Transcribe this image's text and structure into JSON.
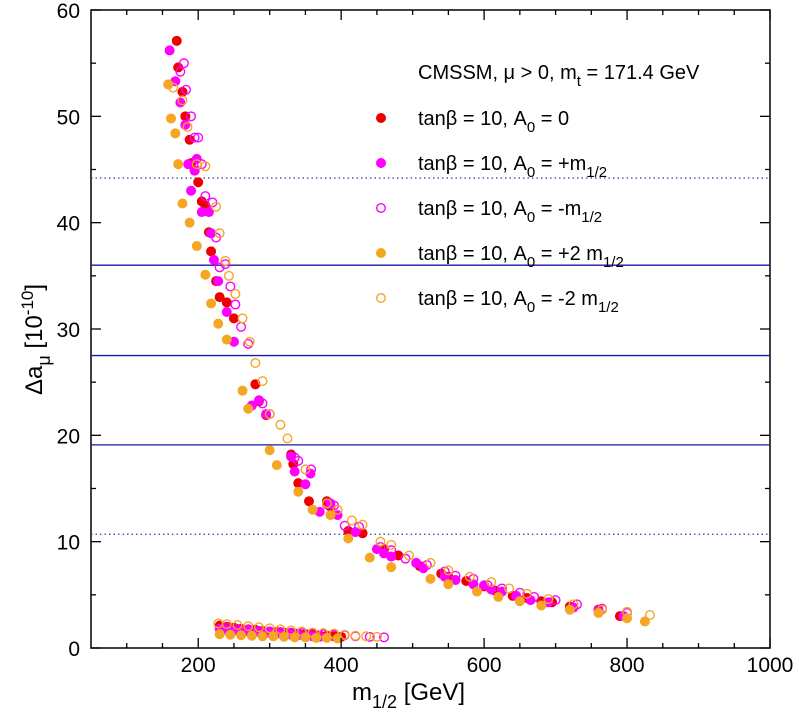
{
  "chart_data": {
    "type": "scatter",
    "title": "CMSSM, μ > 0, m",
    "title_sub": "t",
    "title_tail": " = 171.4 GeV",
    "xlabel": "m",
    "xlabel_sub": "1/2",
    "xlabel_tail": " [GeV]",
    "ylabel": "Δa",
    "ylabel_sub": "μ",
    "ylabel_mid": " [10",
    "ylabel_sup": "-10",
    "ylabel_tail": "]",
    "xlim": [
      50,
      1000
    ],
    "ylim": [
      0,
      60
    ],
    "x_ticks": [
      200,
      400,
      600,
      800,
      1000
    ],
    "y_ticks": [
      0,
      10,
      20,
      30,
      40,
      50,
      60
    ],
    "grid": false,
    "legend_position": "top-right",
    "reference_lines": [
      {
        "y": 44.2,
        "style": "dotted",
        "color": "#3a3a9a"
      },
      {
        "y": 36.0,
        "style": "solid",
        "color": "#1a1aaa"
      },
      {
        "y": 27.5,
        "style": "solid",
        "color": "#1a1aaa"
      },
      {
        "y": 19.1,
        "style": "solid",
        "color": "#1a1aaa"
      },
      {
        "y": 10.7,
        "style": "dotted",
        "color": "#3a3a9a"
      }
    ],
    "series": [
      {
        "name": "tanβ = 10, A",
        "name_sub": "0",
        "name_tail": " = 0",
        "color": "#ee0000",
        "filled": true,
        "points": [
          [
            170,
            57.1
          ],
          [
            172,
            54.6
          ],
          [
            178,
            52.3
          ],
          [
            182,
            50.0
          ],
          [
            188,
            47.8
          ],
          [
            190,
            45.6
          ],
          [
            195,
            44.9
          ],
          [
            200,
            43.8
          ],
          [
            205,
            42.0
          ],
          [
            210,
            41.6
          ],
          [
            215,
            39.1
          ],
          [
            218,
            37.3
          ],
          [
            225,
            34.5
          ],
          [
            230,
            33.0
          ],
          [
            240,
            32.5
          ],
          [
            250,
            31.0
          ],
          [
            280,
            24.8
          ],
          [
            285,
            23.2
          ],
          [
            295,
            21.9
          ],
          [
            330,
            18.2
          ],
          [
            333,
            17.3
          ],
          [
            340,
            15.5
          ],
          [
            355,
            13.8
          ],
          [
            380,
            13.8
          ],
          [
            385,
            13.3
          ],
          [
            410,
            11.0
          ],
          [
            430,
            10.8
          ],
          [
            460,
            9.3
          ],
          [
            480,
            8.7
          ],
          [
            510,
            7.7
          ],
          [
            540,
            7.0
          ],
          [
            550,
            6.7
          ],
          [
            575,
            6.3
          ],
          [
            600,
            5.8
          ],
          [
            615,
            5.4
          ],
          [
            640,
            4.9
          ],
          [
            660,
            4.7
          ],
          [
            680,
            4.4
          ],
          [
            695,
            4.3
          ],
          [
            720,
            3.9
          ],
          [
            760,
            3.6
          ],
          [
            790,
            3.0
          ],
          [
            230,
            2.1
          ],
          [
            240,
            2.0
          ],
          [
            250,
            1.9
          ],
          [
            260,
            1.8
          ],
          [
            270,
            1.75
          ],
          [
            280,
            1.7
          ],
          [
            290,
            1.6
          ],
          [
            300,
            1.55
          ],
          [
            310,
            1.5
          ],
          [
            320,
            1.45
          ],
          [
            330,
            1.4
          ],
          [
            340,
            1.35
          ],
          [
            350,
            1.3
          ],
          [
            360,
            1.25
          ],
          [
            370,
            1.2
          ],
          [
            380,
            1.15
          ],
          [
            390,
            1.1
          ],
          [
            400,
            1.05
          ]
        ]
      },
      {
        "name": "tanβ = 10, A",
        "name_sub": "0",
        "name_tail": " = +m",
        "name_sub2": "1/2",
        "color": "#ff00ff",
        "filled": true,
        "points": [
          [
            160,
            56.2
          ],
          [
            168,
            53.3
          ],
          [
            175,
            51.3
          ],
          [
            182,
            49.2
          ],
          [
            186,
            45.5
          ],
          [
            190,
            43.0
          ],
          [
            195,
            44.9
          ],
          [
            198,
            46.0
          ],
          [
            205,
            41.0
          ],
          [
            215,
            41.0
          ],
          [
            218,
            39.0
          ],
          [
            222,
            36.5
          ],
          [
            228,
            34.5
          ],
          [
            240,
            31.6
          ],
          [
            250,
            28.8
          ],
          [
            275,
            22.8
          ],
          [
            285,
            23.3
          ],
          [
            295,
            22.0
          ],
          [
            330,
            18.0
          ],
          [
            335,
            16.6
          ],
          [
            350,
            15.4
          ],
          [
            357,
            16.4
          ],
          [
            370,
            12.8
          ],
          [
            385,
            13.6
          ],
          [
            395,
            12.5
          ],
          [
            420,
            10.9
          ],
          [
            450,
            9.3
          ],
          [
            460,
            8.9
          ],
          [
            470,
            8.6
          ],
          [
            505,
            8.0
          ],
          [
            515,
            7.5
          ],
          [
            545,
            6.7
          ],
          [
            560,
            6.4
          ],
          [
            585,
            6.0
          ],
          [
            600,
            5.9
          ],
          [
            610,
            5.5
          ],
          [
            625,
            5.3
          ],
          [
            645,
            4.9
          ],
          [
            665,
            4.5
          ],
          [
            690,
            4.3
          ],
          [
            725,
            3.8
          ],
          [
            760,
            3.5
          ],
          [
            795,
            3.0
          ],
          [
            230,
            1.8
          ],
          [
            240,
            1.7
          ],
          [
            250,
            1.65
          ],
          [
            260,
            1.6
          ],
          [
            270,
            1.55
          ],
          [
            280,
            1.5
          ],
          [
            290,
            1.45
          ],
          [
            300,
            1.4
          ],
          [
            310,
            1.35
          ],
          [
            320,
            1.3
          ],
          [
            330,
            1.25
          ],
          [
            340,
            1.2
          ],
          [
            350,
            1.15
          ],
          [
            360,
            1.1
          ],
          [
            370,
            1.05
          ],
          [
            380,
            1.0
          ]
        ]
      },
      {
        "name": "tanβ = 10, A",
        "name_sub": "0",
        "name_tail": " = -m",
        "name_sub2": "1/2",
        "color": "#ff00ff",
        "filled": false,
        "points": [
          [
            175,
            54.2
          ],
          [
            180,
            55.0
          ],
          [
            183,
            52.5
          ],
          [
            190,
            50.0
          ],
          [
            195,
            48.0
          ],
          [
            200,
            48.0
          ],
          [
            205,
            45.5
          ],
          [
            210,
            42.5
          ],
          [
            220,
            41.9
          ],
          [
            225,
            38.6
          ],
          [
            230,
            35.8
          ],
          [
            238,
            36.1
          ],
          [
            245,
            34.0
          ],
          [
            252,
            32.3
          ],
          [
            260,
            30.2
          ],
          [
            270,
            28.6
          ],
          [
            290,
            23.0
          ],
          [
            300,
            22.0
          ],
          [
            335,
            17.9
          ],
          [
            340,
            17.6
          ],
          [
            358,
            16.8
          ],
          [
            380,
            13.5
          ],
          [
            390,
            13.4
          ],
          [
            405,
            11.5
          ],
          [
            425,
            11.4
          ],
          [
            455,
            9.5
          ],
          [
            470,
            9.2
          ],
          [
            490,
            8.4
          ],
          [
            520,
            7.8
          ],
          [
            545,
            7.2
          ],
          [
            560,
            6.8
          ],
          [
            585,
            6.5
          ],
          [
            605,
            5.9
          ],
          [
            625,
            5.6
          ],
          [
            650,
            5.2
          ],
          [
            670,
            4.8
          ],
          [
            700,
            4.5
          ],
          [
            730,
            4.1
          ],
          [
            765,
            3.7
          ],
          [
            800,
            3.3
          ],
          [
            240,
            1.9
          ],
          [
            255,
            1.8
          ],
          [
            270,
            1.7
          ],
          [
            285,
            1.6
          ],
          [
            300,
            1.55
          ],
          [
            315,
            1.5
          ],
          [
            330,
            1.45
          ],
          [
            345,
            1.4
          ],
          [
            360,
            1.35
          ],
          [
            375,
            1.3
          ],
          [
            390,
            1.25
          ],
          [
            405,
            1.2
          ],
          [
            420,
            1.1
          ],
          [
            440,
            1.05
          ],
          [
            460,
            1.0
          ]
        ]
      },
      {
        "name": "tanβ = 10, A",
        "name_sub": "0",
        "name_tail": " = +2 m",
        "name_sub2": "1/2",
        "color": "#f5a623",
        "filled": true,
        "points": [
          [
            158,
            53.0
          ],
          [
            162,
            49.8
          ],
          [
            168,
            48.4
          ],
          [
            172,
            45.5
          ],
          [
            178,
            41.8
          ],
          [
            188,
            40.0
          ],
          [
            198,
            37.8
          ],
          [
            210,
            35.1
          ],
          [
            218,
            32.4
          ],
          [
            228,
            30.5
          ],
          [
            240,
            29.0
          ],
          [
            262,
            24.2
          ],
          [
            270,
            22.5
          ],
          [
            300,
            18.6
          ],
          [
            310,
            17.2
          ],
          [
            340,
            14.7
          ],
          [
            360,
            13.0
          ],
          [
            385,
            12.5
          ],
          [
            410,
            10.3
          ],
          [
            440,
            8.5
          ],
          [
            470,
            7.6
          ],
          [
            525,
            6.5
          ],
          [
            550,
            6.0
          ],
          [
            590,
            5.3
          ],
          [
            620,
            4.8
          ],
          [
            650,
            4.4
          ],
          [
            680,
            4.0
          ],
          [
            720,
            3.6
          ],
          [
            760,
            3.3
          ],
          [
            800,
            2.8
          ],
          [
            825,
            2.5
          ],
          [
            230,
            1.3
          ],
          [
            245,
            1.25
          ],
          [
            260,
            1.2
          ],
          [
            275,
            1.15
          ],
          [
            290,
            1.1
          ],
          [
            305,
            1.1
          ],
          [
            320,
            1.05
          ],
          [
            335,
            1.0
          ],
          [
            350,
            1.0
          ],
          [
            365,
            0.95
          ],
          [
            380,
            0.95
          ],
          [
            395,
            0.9
          ]
        ]
      },
      {
        "name": "tanβ = 10, A",
        "name_sub": "0",
        "name_tail": " = -2 m",
        "name_sub2": "1/2",
        "color": "#f5a623",
        "filled": false,
        "points": [
          [
            165,
            52.7
          ],
          [
            178,
            51.5
          ],
          [
            185,
            49.0
          ],
          [
            198,
            45.5
          ],
          [
            210,
            45.3
          ],
          [
            225,
            41.5
          ],
          [
            230,
            39.0
          ],
          [
            238,
            36.4
          ],
          [
            243,
            35.0
          ],
          [
            252,
            33.3
          ],
          [
            262,
            31.0
          ],
          [
            272,
            28.8
          ],
          [
            280,
            26.8
          ],
          [
            290,
            25.1
          ],
          [
            300,
            22.0
          ],
          [
            315,
            21.0
          ],
          [
            325,
            19.7
          ],
          [
            350,
            16.8
          ],
          [
            380,
            13.6
          ],
          [
            395,
            13.0
          ],
          [
            415,
            12.0
          ],
          [
            430,
            11.6
          ],
          [
            455,
            10.0
          ],
          [
            470,
            9.7
          ],
          [
            495,
            8.7
          ],
          [
            525,
            8.0
          ],
          [
            550,
            7.3
          ],
          [
            580,
            6.7
          ],
          [
            610,
            6.2
          ],
          [
            635,
            5.6
          ],
          [
            660,
            5.1
          ],
          [
            690,
            4.6
          ],
          [
            725,
            4.1
          ],
          [
            765,
            3.6
          ],
          [
            800,
            3.4
          ],
          [
            832,
            3.1
          ],
          [
            228,
            2.3
          ],
          [
            240,
            2.25
          ],
          [
            255,
            2.15
          ],
          [
            270,
            2.05
          ],
          [
            285,
            1.95
          ],
          [
            300,
            1.85
          ],
          [
            315,
            1.75
          ],
          [
            330,
            1.65
          ],
          [
            345,
            1.55
          ],
          [
            360,
            1.45
          ],
          [
            375,
            1.4
          ],
          [
            390,
            1.35
          ],
          [
            405,
            1.25
          ],
          [
            420,
            1.15
          ],
          [
            435,
            1.1
          ],
          [
            450,
            1.05
          ]
        ]
      }
    ]
  }
}
